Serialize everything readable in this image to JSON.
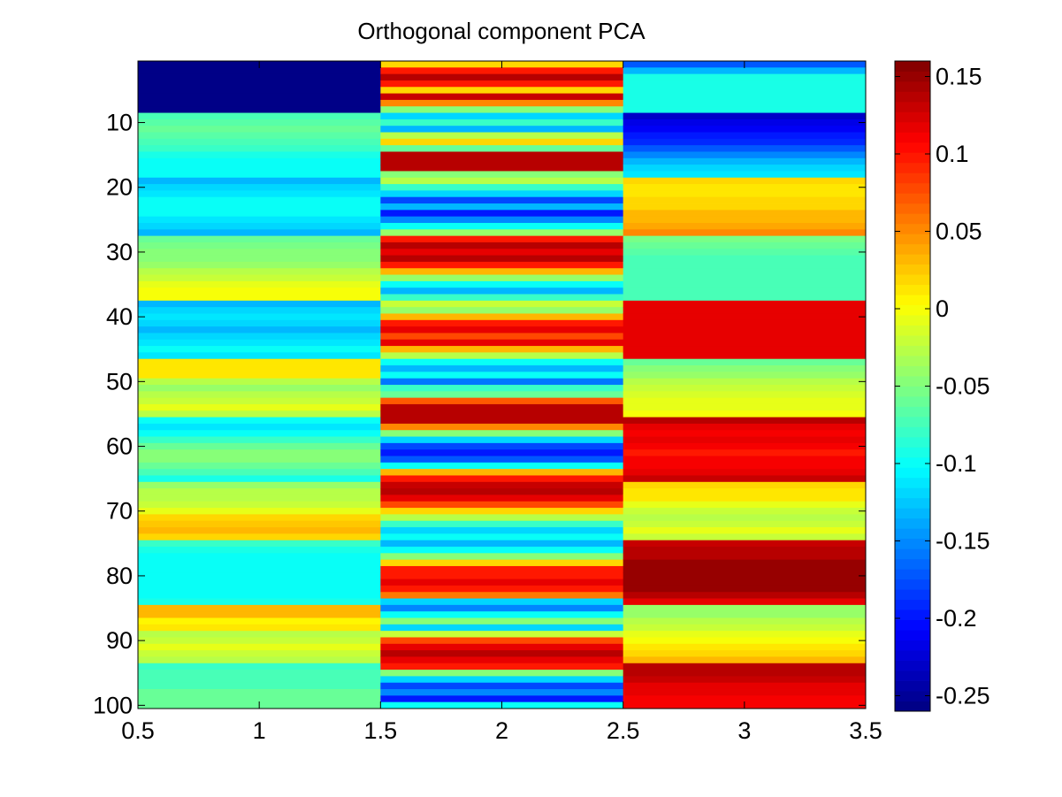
{
  "chart_data": {
    "type": "heatmap",
    "title": "Orthogonal component PCA",
    "xlabel": "",
    "ylabel": "",
    "x": [
      1,
      2,
      3
    ],
    "xlim": [
      0.5,
      3.5
    ],
    "ylim": [
      0.5,
      100.5
    ],
    "y_reversed": true,
    "x_ticks": [
      0.5,
      1,
      1.5,
      2,
      2.5,
      3,
      3.5
    ],
    "x_tick_labels": [
      "0.5",
      "1",
      "1.5",
      "2",
      "2.5",
      "3",
      "3.5"
    ],
    "y_ticks": [
      10,
      20,
      30,
      40,
      50,
      60,
      70,
      80,
      90,
      100
    ],
    "y_tick_labels": [
      "10",
      "20",
      "30",
      "40",
      "50",
      "60",
      "70",
      "80",
      "90",
      "100"
    ],
    "colormap": "jet",
    "clim": [
      -0.26,
      0.16
    ],
    "colorbar_ticks": [
      0.15,
      0.1,
      0.05,
      0,
      -0.05,
      -0.1,
      -0.15,
      -0.2,
      -0.25
    ],
    "colorbar_tick_labels": [
      "0.15",
      "0.1",
      "0.05",
      "0",
      "-0.05",
      "-0.1",
      "-0.15",
      "-0.2",
      "-0.25"
    ],
    "grid": false,
    "columns": [
      {
        "x": 1,
        "values": [
          -0.255,
          -0.255,
          -0.255,
          -0.255,
          -0.255,
          -0.255,
          -0.255,
          -0.255,
          -0.07,
          -0.065,
          -0.06,
          -0.065,
          -0.07,
          -0.08,
          -0.09,
          -0.1,
          -0.1,
          -0.1,
          -0.13,
          -0.12,
          -0.11,
          -0.1,
          -0.1,
          -0.1,
          -0.11,
          -0.12,
          -0.13,
          -0.06,
          -0.055,
          -0.05,
          -0.045,
          -0.04,
          -0.03,
          -0.02,
          -0.01,
          0,
          0,
          -0.13,
          -0.12,
          -0.11,
          -0.12,
          -0.13,
          -0.12,
          -0.11,
          -0.1,
          -0.11,
          0.01,
          0.01,
          0.01,
          -0.03,
          -0.04,
          -0.03,
          -0.02,
          -0.01,
          -0.03,
          -0.1,
          -0.11,
          -0.1,
          -0.08,
          -0.06,
          -0.05,
          -0.05,
          -0.06,
          -0.07,
          -0.09,
          -0.04,
          -0.03,
          -0.025,
          -0.02,
          -0.01,
          0.02,
          0.025,
          0.03,
          0.02,
          -0.08,
          -0.09,
          -0.1,
          -0.1,
          -0.1,
          -0.1,
          -0.1,
          -0.1,
          -0.1,
          -0.09,
          0.03,
          0.03,
          0.005,
          0.01,
          -0.03,
          -0.02,
          -0.01,
          -0.02,
          -0.03,
          -0.08,
          -0.07,
          -0.07,
          -0.07,
          -0.06,
          -0.06,
          -0.06
        ]
      },
      {
        "x": 2,
        "values": [
          0.02,
          0.1,
          0.14,
          0.1,
          0.02,
          0.13,
          0.05,
          -0.05,
          -0.12,
          -0.08,
          -0.13,
          -0.03,
          0.02,
          -0.06,
          0.14,
          0.14,
          0.14,
          -0.05,
          -0.03,
          -0.08,
          -0.12,
          -0.18,
          -0.13,
          -0.2,
          -0.15,
          -0.1,
          -0.04,
          0.1,
          0.14,
          0.12,
          0.14,
          0.1,
          0.03,
          -0.04,
          -0.1,
          -0.13,
          -0.08,
          -0.02,
          -0.04,
          0.03,
          0.1,
          0.12,
          0.08,
          0.12,
          0.03,
          -0.03,
          -0.1,
          -0.13,
          -0.1,
          -0.16,
          -0.08,
          -0.06,
          0.07,
          0.14,
          0.14,
          0.14,
          0.05,
          -0.05,
          -0.12,
          -0.18,
          -0.2,
          -0.17,
          -0.1,
          0.03,
          0.1,
          0.13,
          0.14,
          0.12,
          0.08,
          0.02,
          -0.03,
          -0.08,
          -0.12,
          -0.1,
          -0.13,
          -0.1,
          -0.05,
          0.02,
          0.1,
          0.1,
          0.12,
          0.1,
          0.06,
          -0.12,
          -0.15,
          -0.1,
          -0.05,
          -0.12,
          -0.02,
          0.08,
          0.12,
          0.14,
          0.12,
          0.1,
          -0.05,
          -0.12,
          -0.18,
          -0.15,
          -0.2,
          -0.1
        ]
      },
      {
        "x": 3,
        "values": [
          -0.17,
          -0.13,
          -0.09,
          -0.09,
          -0.09,
          -0.09,
          -0.09,
          -0.09,
          -0.23,
          -0.22,
          -0.21,
          -0.2,
          -0.19,
          -0.17,
          -0.15,
          -0.13,
          -0.12,
          -0.11,
          0.02,
          0.01,
          0.01,
          0.02,
          0.02,
          0.03,
          0.03,
          0.04,
          0.05,
          -0.055,
          -0.06,
          -0.065,
          -0.07,
          -0.07,
          -0.07,
          -0.07,
          -0.07,
          -0.07,
          -0.07,
          0.12,
          0.12,
          0.12,
          0.12,
          0.12,
          0.12,
          0.12,
          0.12,
          0.12,
          -0.06,
          -0.05,
          -0.04,
          -0.03,
          -0.02,
          -0.015,
          -0.01,
          -0.005,
          0,
          0.14,
          0.12,
          0.11,
          0.12,
          0.11,
          0.1,
          0.11,
          0.11,
          0.12,
          0.13,
          0.02,
          0.01,
          0.01,
          -0.01,
          -0.02,
          -0.03,
          -0.02,
          -0.01,
          -0.02,
          0.13,
          0.14,
          0.14,
          0.15,
          0.15,
          0.15,
          0.15,
          0.15,
          0.14,
          0.12,
          -0.04,
          -0.04,
          -0.03,
          -0.02,
          -0.01,
          0,
          0.01,
          0.02,
          0.03,
          0.14,
          0.14,
          0.13,
          0.12,
          0.12,
          0.11,
          0.11
        ]
      }
    ]
  }
}
